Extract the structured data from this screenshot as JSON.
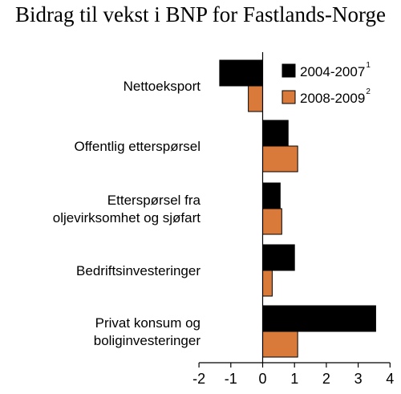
{
  "chart_data": {
    "type": "bar",
    "orientation": "horizontal",
    "title": "Bidrag til vekst i BNP for Fastlands-Norge",
    "xlabel": "",
    "ylabel": "",
    "xlim": [
      -2,
      4
    ],
    "xticks": [
      -2,
      -1,
      0,
      1,
      2,
      3,
      4
    ],
    "grid": false,
    "legend_position": "top-right",
    "categories": [
      [
        "Nettoeksport"
      ],
      [
        "Offentlig etterspørsel"
      ],
      [
        "Etterspørsel fra",
        "oljevirksomhet og sjøfart"
      ],
      [
        "Bedriftsinvesteringer"
      ],
      [
        "Privat konsum og",
        "boliginvesteringer"
      ]
    ],
    "series": [
      {
        "name": "2004-2007",
        "superscript": "1",
        "color": "#000000",
        "values": [
          -1.35,
          0.8,
          0.55,
          1.0,
          3.55
        ]
      },
      {
        "name": "2008-2009",
        "superscript": "2",
        "color": "#d97a3a",
        "values": [
          -0.45,
          1.1,
          0.6,
          0.3,
          1.1
        ]
      }
    ]
  }
}
